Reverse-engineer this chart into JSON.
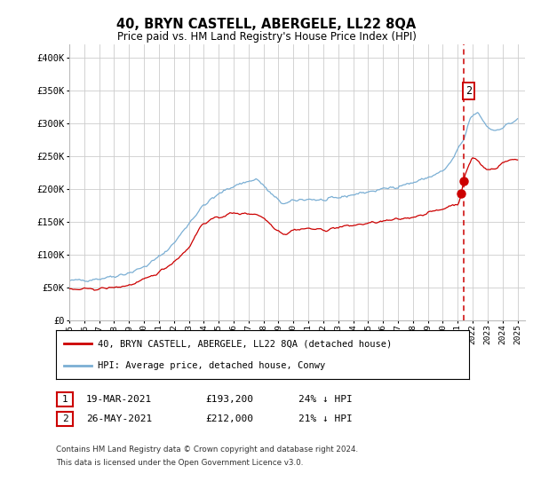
{
  "title": "40, BRYN CASTELL, ABERGELE, LL22 8QA",
  "subtitle": "Price paid vs. HM Land Registry's House Price Index (HPI)",
  "legend_property": "40, BRYN CASTELL, ABERGELE, LL22 8QA (detached house)",
  "legend_hpi": "HPI: Average price, detached house, Conwy",
  "transaction1_date": "19-MAR-2021",
  "transaction1_price": "£193,200",
  "transaction1_hpi_diff": "24% ↓ HPI",
  "transaction2_date": "26-MAY-2021",
  "transaction2_price": "£212,000",
  "transaction2_hpi_diff": "21% ↓ HPI",
  "vline_x": 2021.4,
  "marker1_x": 2021.22,
  "marker1_y": 193200,
  "marker2_x": 2021.4,
  "marker2_y": 212000,
  "property_line_color": "#cc0000",
  "hpi_line_color": "#7bafd4",
  "vline_color": "#cc0000",
  "marker_color": "#cc0000",
  "background_color": "#ffffff",
  "grid_color": "#cccccc",
  "ylim": [
    0,
    420000
  ],
  "xlim_start": 1995.0,
  "xlim_end": 2025.5,
  "footnote1": "Contains HM Land Registry data © Crown copyright and database right 2024.",
  "footnote2": "This data is licensed under the Open Government Licence v3.0."
}
